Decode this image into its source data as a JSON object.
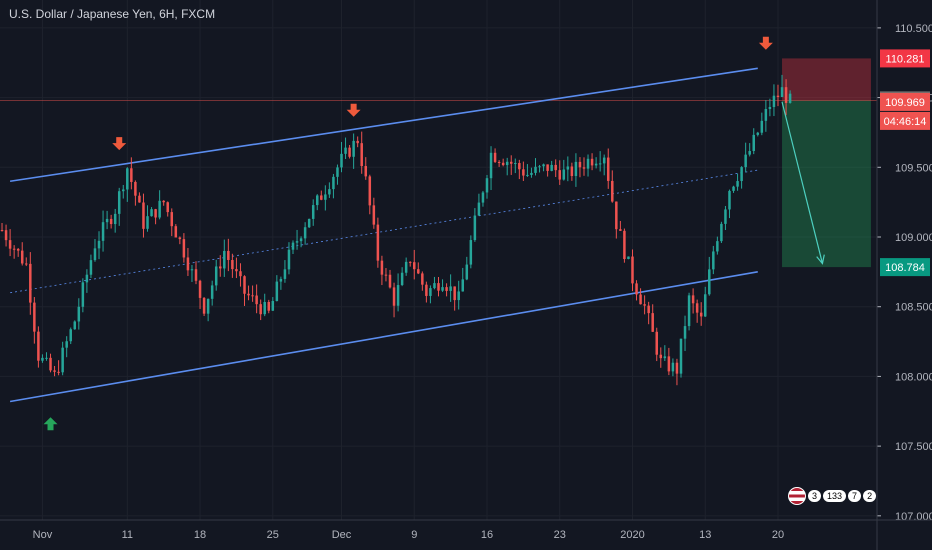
{
  "title": "U.S. Dollar / Japanese Yen, 6H, FXCM",
  "colors": {
    "background": "#131722",
    "up": "#26a69a",
    "down": "#ef5350",
    "channel": "#5b8def",
    "stop_zone": "rgba(242,54,69,0.35)",
    "target_zone": "rgba(38,166,91,0.35)",
    "arrow_down": "#ef5a3c",
    "arrow_up": "#26a65b"
  },
  "chart_data": {
    "type": "candlestick",
    "symbol": "USDJPY",
    "timeframe": "6H",
    "ylim": [
      106.97,
      110.7
    ],
    "y_ticks": [
      "110.500",
      "110.000",
      "109.500",
      "109.000",
      "108.500",
      "108.000",
      "107.500",
      "107.000"
    ],
    "x_ticks": [
      "Nov",
      "11",
      "18",
      "25",
      "Dec",
      "9",
      "16",
      "23",
      "2020",
      "13",
      "20"
    ],
    "price_labels": [
      {
        "value": 110.281,
        "text": "110.281",
        "kind": "stop",
        "color": "#f23645"
      },
      {
        "value": 109.98,
        "text": "109.980",
        "kind": "entry",
        "color": "#6f6f6f"
      },
      {
        "value": 109.969,
        "text": "109.969",
        "kind": "last",
        "color": "#ef5350"
      },
      {
        "value": 109.8,
        "text": "04:46:14",
        "kind": "countdown",
        "color": "#ef5350"
      },
      {
        "value": 108.784,
        "text": "108.784",
        "kind": "target",
        "color": "#089981"
      }
    ],
    "trend_closes": [
      [
        0,
        109.05
      ],
      [
        6,
        108.8
      ],
      [
        9,
        108.15
      ],
      [
        13,
        108.0
      ],
      [
        18,
        108.4
      ],
      [
        23,
        108.95
      ],
      [
        28,
        109.2
      ],
      [
        31,
        109.5
      ],
      [
        35,
        109.1
      ],
      [
        40,
        109.25
      ],
      [
        45,
        108.9
      ],
      [
        50,
        108.5
      ],
      [
        55,
        108.9
      ],
      [
        60,
        108.6
      ],
      [
        66,
        108.45
      ],
      [
        70,
        108.8
      ],
      [
        75,
        109.1
      ],
      [
        80,
        109.35
      ],
      [
        84,
        109.55
      ],
      [
        88,
        109.7
      ],
      [
        90,
        109.4
      ],
      [
        93,
        108.85
      ],
      [
        97,
        108.55
      ],
      [
        101,
        108.85
      ],
      [
        105,
        108.6
      ],
      [
        109,
        108.7
      ],
      [
        113,
        108.55
      ],
      [
        117,
        109.1
      ],
      [
        121,
        109.6
      ],
      [
        125,
        109.55
      ],
      [
        130,
        109.45
      ],
      [
        135,
        109.5
      ],
      [
        140,
        109.45
      ],
      [
        145,
        109.55
      ],
      [
        149,
        109.6
      ],
      [
        152,
        109.1
      ],
      [
        156,
        108.7
      ],
      [
        159,
        108.5
      ],
      [
        163,
        108.1
      ],
      [
        167,
        108.05
      ],
      [
        170,
        108.55
      ],
      [
        173,
        108.4
      ],
      [
        176,
        108.9
      ],
      [
        180,
        109.35
      ],
      [
        184,
        109.55
      ],
      [
        187,
        109.75
      ],
      [
        190,
        109.95
      ],
      [
        193,
        110.05
      ],
      [
        195,
        109.97
      ]
    ],
    "channel": {
      "upper": [
        [
          2,
          109.4
        ],
        [
          187,
          110.21
        ]
      ],
      "lower": [
        [
          2,
          107.82
        ],
        [
          187,
          108.75
        ]
      ],
      "mid_dotted": [
        [
          2,
          108.6
        ],
        [
          187,
          109.48
        ]
      ]
    },
    "trade_position": {
      "entry": 109.98,
      "stop": 110.281,
      "target": 108.784,
      "start_index": 193,
      "end_index": 215
    },
    "projection_arrow": [
      [
        193,
        109.97
      ],
      [
        203,
        108.81
      ]
    ],
    "pivot_markers": [
      {
        "index": 29,
        "price": 109.63,
        "direction": "down"
      },
      {
        "index": 87,
        "price": 109.87,
        "direction": "down"
      },
      {
        "index": 189,
        "price": 110.35,
        "direction": "down"
      },
      {
        "index": 12,
        "price": 107.7,
        "direction": "up"
      }
    ]
  },
  "badge": {
    "a": "3",
    "b": "133",
    "c": "7",
    "d": "2"
  }
}
